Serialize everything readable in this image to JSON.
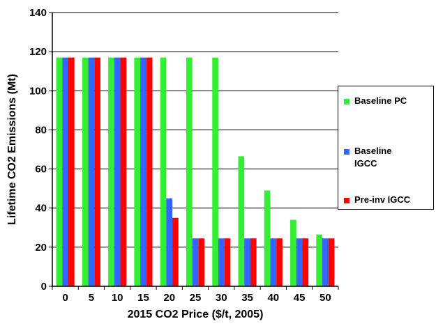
{
  "chart_data": {
    "type": "bar",
    "xlabel": "2015 CO2 Price ($/t, 2005)",
    "ylabel": "Lifetime CO2 Emissions (Mt)",
    "ylim": [
      0,
      140
    ],
    "yticks": [
      "0",
      "20",
      "40",
      "60",
      "80",
      "100",
      "120",
      "140"
    ],
    "categories": [
      "0",
      "5",
      "10",
      "15",
      "20",
      "25",
      "30",
      "35",
      "40",
      "45",
      "50"
    ],
    "grid": "horizontal",
    "legend_position": "right",
    "series": [
      {
        "name": "Baseline PC",
        "color": "#33ee33",
        "values": [
          117,
          117,
          117,
          117,
          117,
          117,
          117,
          66.5,
          49,
          34,
          26.5
        ]
      },
      {
        "name": "Baseline IGCC",
        "color": "#3366ff",
        "values": [
          117,
          117,
          117,
          117,
          45,
          24.5,
          24.5,
          24.5,
          24.5,
          24.5,
          24.5
        ]
      },
      {
        "name": "Pre-inv IGCC",
        "color": "#ff0000",
        "values": [
          117,
          117,
          117,
          117,
          35,
          24.5,
          24.5,
          24.5,
          24.5,
          24.5,
          24.5
        ]
      }
    ]
  },
  "legend": {
    "items": [
      {
        "label": "Baseline PC"
      },
      {
        "label": "Baseline\nIGCC"
      },
      {
        "label": "Pre-inv IGCC"
      }
    ]
  }
}
